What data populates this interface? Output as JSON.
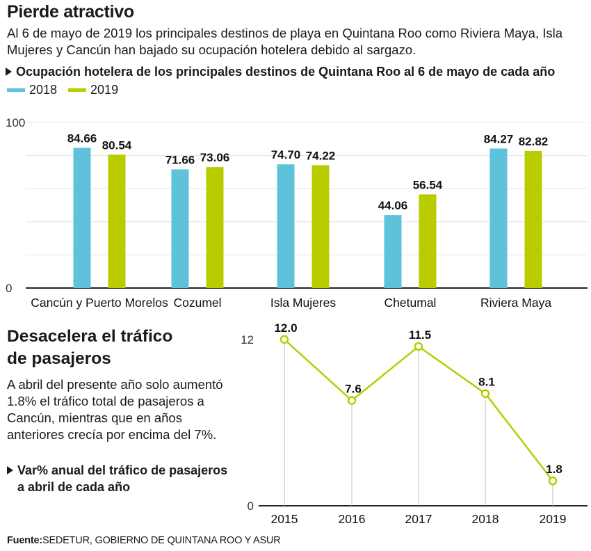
{
  "title": "Pierde atractivo",
  "subtitle": "Al 6 de mayo de 2019 los principales destinos de playa en Quintana Roo como Riviera Maya, Isla Mujeres y Cancún han bajado su ocupación hotelera debido al sargazo.",
  "colors": {
    "series_2018": "#5ec3da",
    "series_2019": "#b9cc00",
    "line": "#b9cc00",
    "grid": "#e3e3e3",
    "axis": "#222222"
  },
  "section2": {
    "title_line1": "Desacelera el tráfico",
    "title_line2": "de pasajeros",
    "text": "A abril del presente año solo aumentó 1.8% el tráfico total de pasajeros a Cancún, mientras que en años anteriores crecía por encima del 7%."
  },
  "source": {
    "label": "Fuente:",
    "text": "SEDETUR, GOBIERNO DE QUINTANA ROO Y ASUR"
  },
  "chart_data": [
    {
      "type": "bar",
      "title": "Ocupación hotelera de los principales destinos de Quintana Roo al 6 de mayo de cada año",
      "categories": [
        "Cancún y Puerto Morelos",
        "Cozumel",
        "Isla Mujeres",
        "Chetumal",
        "Riviera Maya"
      ],
      "series": [
        {
          "name": "2018",
          "values": [
            84.66,
            71.66,
            74.7,
            44.06,
            84.27
          ],
          "labels": [
            "84.66",
            "71.66",
            "74.70",
            "44.06",
            "84.27"
          ]
        },
        {
          "name": "2019",
          "values": [
            80.54,
            73.06,
            74.22,
            56.54,
            82.82
          ],
          "labels": [
            "80.54",
            "73.06",
            "74.22",
            "56.54",
            "82.82"
          ]
        }
      ],
      "ylim": [
        0,
        100
      ],
      "yticks": [
        0,
        100
      ],
      "ytick_labels": [
        "0",
        "100"
      ],
      "grid": true,
      "legend": "top-left"
    },
    {
      "type": "line",
      "title_line1": "Var% anual del tráfico de pasajeros",
      "title_line2": "a abril de cada año",
      "x": [
        "2015",
        "2016",
        "2017",
        "2018",
        "2019"
      ],
      "values": [
        12.0,
        7.6,
        11.5,
        8.1,
        1.8
      ],
      "labels": [
        "12.0",
        "7.6",
        "11.5",
        "8.1",
        "1.8"
      ],
      "ylim": [
        0,
        12
      ],
      "yticks": [
        0,
        12
      ],
      "ytick_labels": [
        "0",
        "12"
      ]
    }
  ]
}
